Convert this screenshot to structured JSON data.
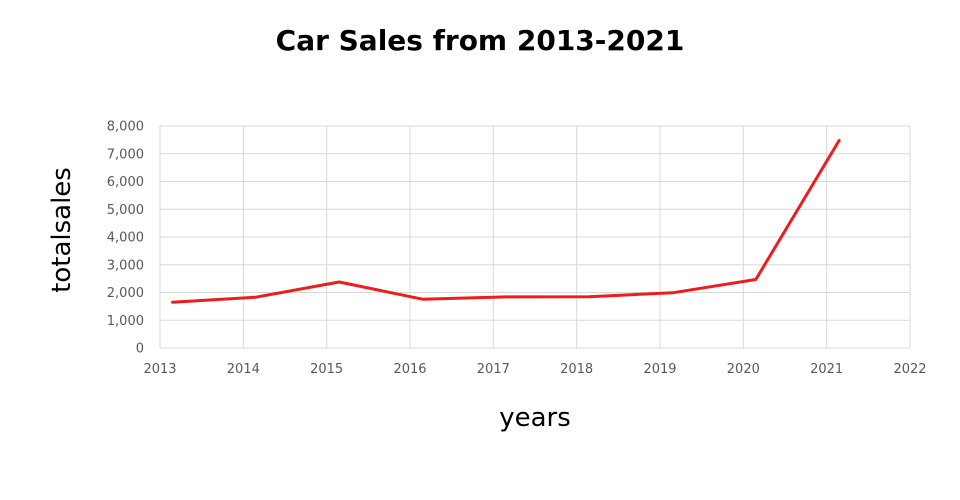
{
  "chart_data": {
    "type": "line",
    "title": "Car Sales from 2013-2021",
    "xlabel": "years",
    "ylabel": "totalsales",
    "xlim": [
      2013,
      2022
    ],
    "ylim": [
      0,
      8000
    ],
    "x_ticks": [
      "2013",
      "2014",
      "2015",
      "2016",
      "2017",
      "2018",
      "2019",
      "2020",
      "2021",
      "2022"
    ],
    "y_ticks": [
      "0",
      "1,000",
      "2,000",
      "3,000",
      "4,000",
      "5,000",
      "6,000",
      "7,000",
      "8,000"
    ],
    "grid": true,
    "legend": "none",
    "series": [
      {
        "color": "#ee1c1c",
        "x": [
          2013.15,
          2014.15,
          2015.15,
          2016.15,
          2017.15,
          2018.15,
          2019.15,
          2020.15,
          2021.15
        ],
        "y": [
          1650,
          1830,
          2380,
          1760,
          1840,
          1850,
          1990,
          2470,
          7480
        ]
      }
    ]
  }
}
